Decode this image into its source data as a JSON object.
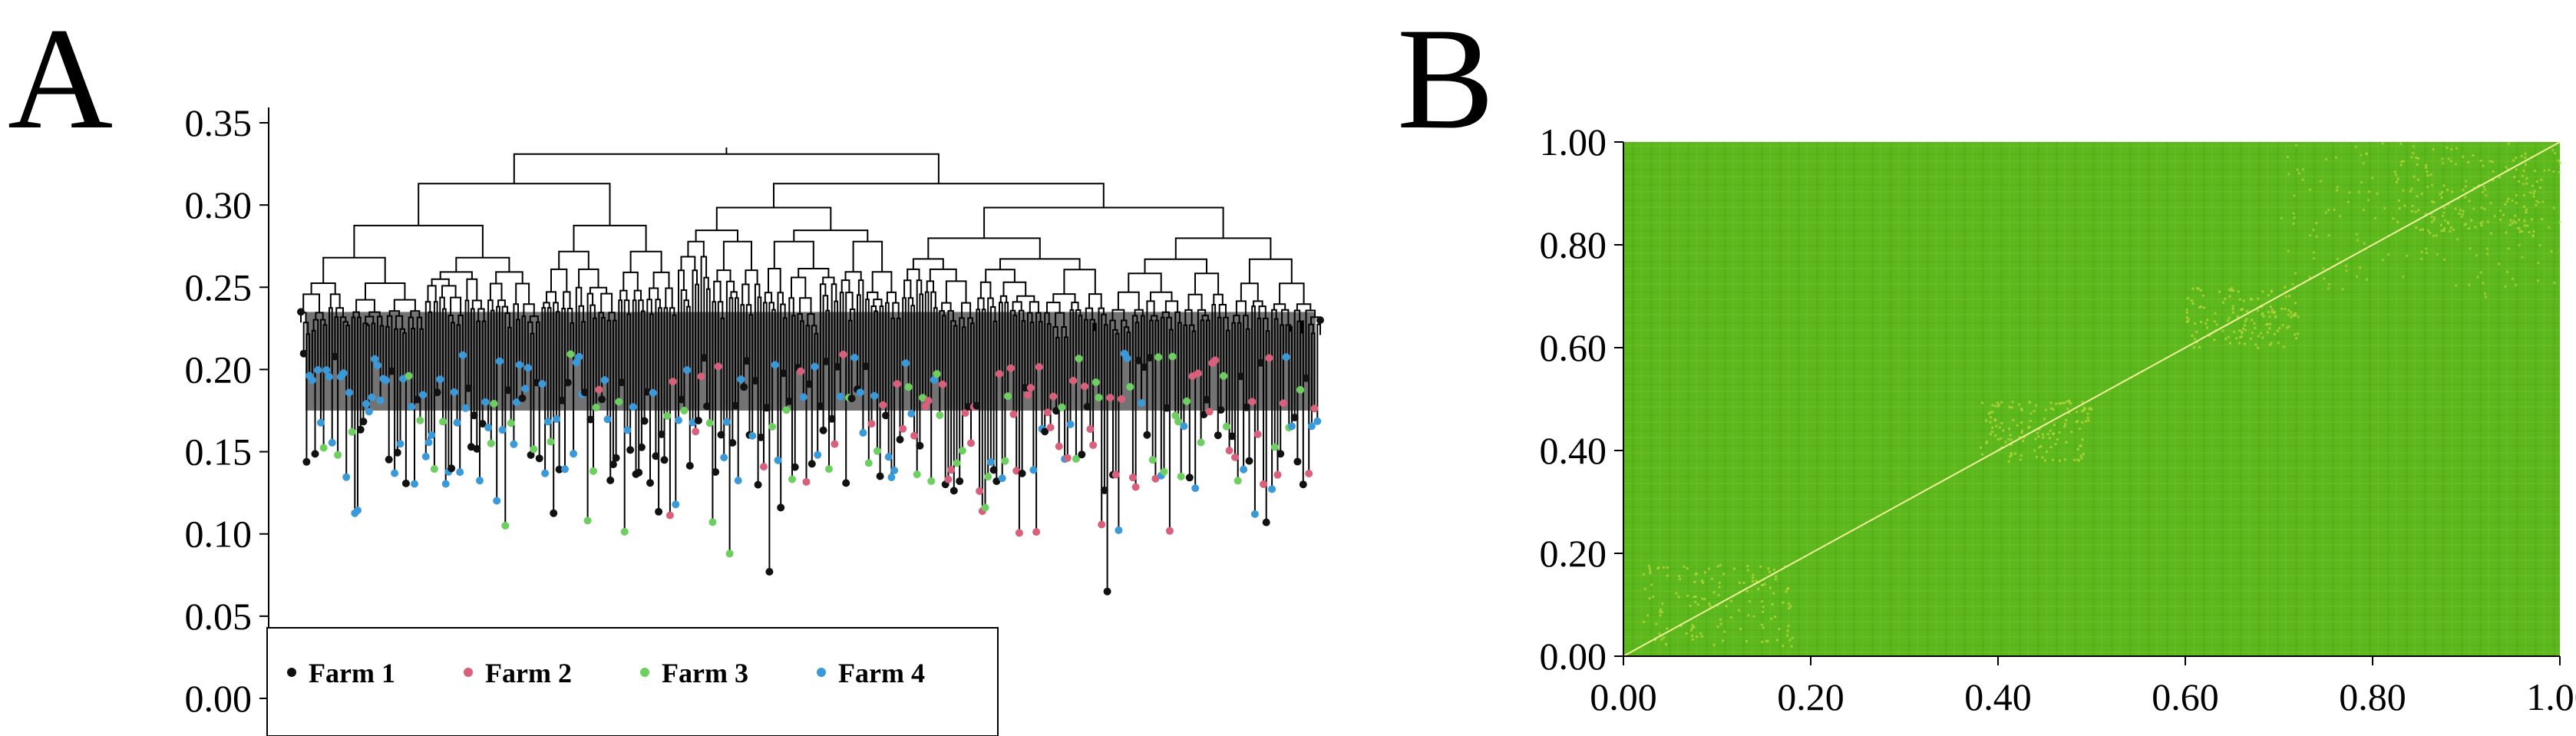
{
  "panels": [
    {
      "letter": "A"
    },
    {
      "letter": "B"
    }
  ],
  "colors": {
    "farm1": "#111111",
    "farm2": "#d9607a",
    "farm3": "#6dcf5f",
    "farm4": "#3a9ad9",
    "heatmap_base": "#5cb81c",
    "heatmap_high": "#b4d63a",
    "diagonal": "#f0f59a"
  },
  "chart_data": [
    {
      "type": "dendrogram",
      "panel": "A",
      "y_ticks": [
        "0.00",
        "0.05",
        "0.10",
        "0.15",
        "0.20",
        "0.25",
        "0.30",
        "0.35"
      ],
      "ylim": [
        0.0,
        0.35
      ],
      "root_height": 0.335,
      "leaf_height_range": [
        0.065,
        0.25
      ],
      "min_leaf": {
        "height": 0.065
      },
      "legend": {
        "placement": "bottom-left",
        "entries": [
          {
            "label": "Farm 1",
            "color": "#111111"
          },
          {
            "label": "Farm 2",
            "color": "#d9607a"
          },
          {
            "label": "Farm 3",
            "color": "#6dcf5f"
          },
          {
            "label": "Farm 4",
            "color": "#3a9ad9"
          }
        ]
      }
    },
    {
      "type": "heatmap",
      "panel": "B",
      "x_ticks": [
        "0.00",
        "0.20",
        "0.40",
        "0.60",
        "0.80",
        "1.00"
      ],
      "y_ticks": [
        "0.00",
        "0.20",
        "0.40",
        "0.60",
        "0.80",
        "1.00"
      ],
      "xlim": [
        0.0,
        1.0
      ],
      "ylim": [
        0.0,
        1.0
      ],
      "diagonal": "y = x"
    }
  ]
}
